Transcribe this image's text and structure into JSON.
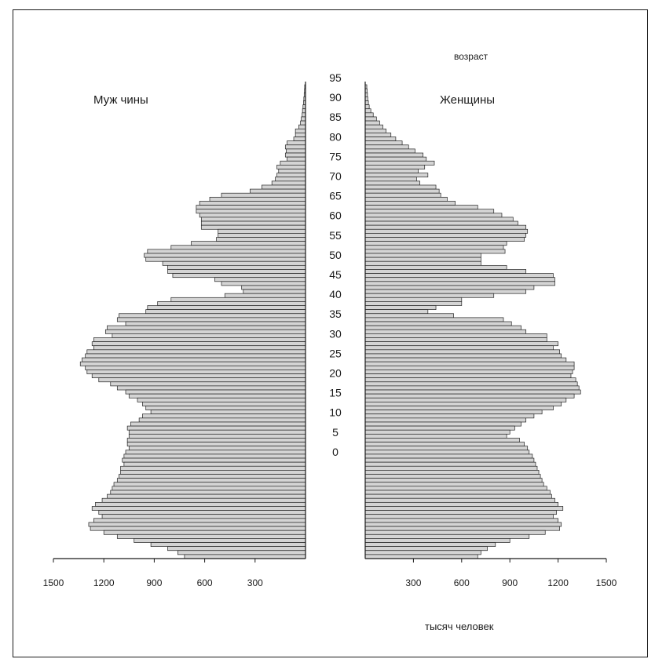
{
  "chart_data": {
    "type": "bar",
    "title": "",
    "panel_labels": {
      "left": "Муж чины",
      "right": "Женщины"
    },
    "age_axis_label": "возраст",
    "xlabel": "тысяч человек",
    "age_ticks": [
      "95",
      "90",
      "85",
      "80",
      "75",
      "70",
      "65",
      "60",
      "55",
      "50",
      "45",
      "40",
      "35",
      "30",
      "25",
      "20",
      "15",
      "10",
      "5",
      "0"
    ],
    "left_x_ticks": [
      "1500",
      "1200",
      "900",
      "600",
      "300"
    ],
    "right_x_ticks": [
      "300",
      "600",
      "900",
      "1200",
      "1500"
    ],
    "xlim": [
      0,
      1500
    ],
    "bar_fill": "#d4d4d4",
    "bar_stroke": "#222222",
    "series": [
      {
        "name": "Муж чины",
        "values": [
          5,
          6,
          8,
          10,
          12,
          15,
          18,
          20,
          25,
          30,
          40,
          60,
          60,
          70,
          110,
          120,
          115,
          120,
          110,
          150,
          170,
          160,
          170,
          180,
          200,
          260,
          330,
          500,
          570,
          630,
          650,
          650,
          630,
          620,
          620,
          620,
          520,
          520,
          530,
          680,
          800,
          940,
          960,
          950,
          850,
          820,
          820,
          790,
          540,
          500,
          380,
          370,
          480,
          800,
          880,
          940,
          950,
          1110,
          1120,
          1070,
          1180,
          1190,
          1150,
          1260,
          1270,
          1260,
          1300,
          1310,
          1330,
          1340,
          1310,
          1300,
          1270,
          1230,
          1160,
          1120,
          1070,
          1050,
          1000,
          970,
          950,
          920,
          970,
          990,
          1040,
          1060,
          1050,
          1050,
          1060,
          1060,
          1050,
          1070,
          1080,
          1090,
          1080,
          1100,
          1100,
          1110,
          1120,
          1140,
          1150,
          1160,
          1180,
          1210,
          1250,
          1270,
          1230,
          1210,
          1260,
          1290,
          1280,
          1200,
          1120,
          1020,
          920,
          820,
          760,
          720
        ]
      },
      {
        "name": "Женщины",
        "values": [
          10,
          12,
          14,
          16,
          20,
          25,
          35,
          50,
          70,
          90,
          110,
          130,
          160,
          190,
          230,
          270,
          310,
          360,
          380,
          430,
          370,
          330,
          390,
          320,
          340,
          440,
          460,
          470,
          510,
          560,
          700,
          800,
          850,
          920,
          950,
          1000,
          1010,
          1000,
          990,
          880,
          860,
          870,
          720,
          720,
          720,
          880,
          1000,
          1170,
          1180,
          1180,
          1050,
          1000,
          800,
          600,
          600,
          440,
          390,
          550,
          860,
          910,
          970,
          1000,
          1130,
          1130,
          1200,
          1170,
          1210,
          1220,
          1250,
          1300,
          1300,
          1290,
          1280,
          1310,
          1320,
          1330,
          1340,
          1300,
          1250,
          1220,
          1170,
          1100,
          1050,
          1000,
          970,
          930,
          900,
          880,
          960,
          990,
          1010,
          1020,
          1040,
          1050,
          1060,
          1070,
          1080,
          1090,
          1100,
          1110,
          1130,
          1150,
          1160,
          1180,
          1200,
          1230,
          1190,
          1170,
          1200,
          1220,
          1210,
          1120,
          1020,
          900,
          810,
          760,
          720,
          700
        ]
      }
    ]
  }
}
